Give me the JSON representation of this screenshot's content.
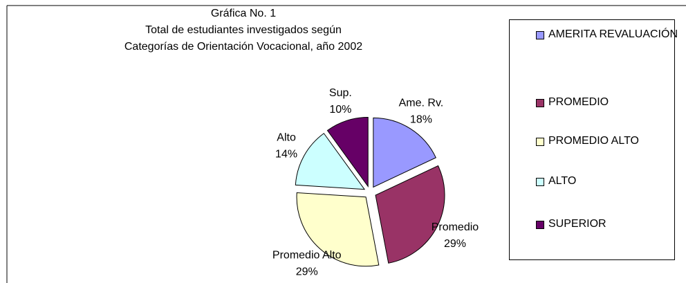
{
  "chart_data": {
    "type": "pie",
    "title": [
      "Gráfica No. 1",
      "Total de estudiantes investigados según",
      "Categorías de Orientación Vocacional, año 2002"
    ],
    "categories": [
      "AMERITA REVALUACIÓN",
      "PROMEDIO",
      "PROMEDIO ALTO",
      "ALTO",
      "SUPERIOR"
    ],
    "slice_labels": [
      "Ame. Rv.",
      "Promedio",
      "Promedio Alto",
      "Alto",
      "Sup."
    ],
    "values": [
      18,
      29,
      29,
      14,
      10
    ],
    "value_labels": [
      "18%",
      "29%",
      "29%",
      "14%",
      "10%"
    ],
    "colors": [
      "#9999ff",
      "#993366",
      "#ffffcc",
      "#ccffff",
      "#660066"
    ],
    "legend": "right"
  }
}
